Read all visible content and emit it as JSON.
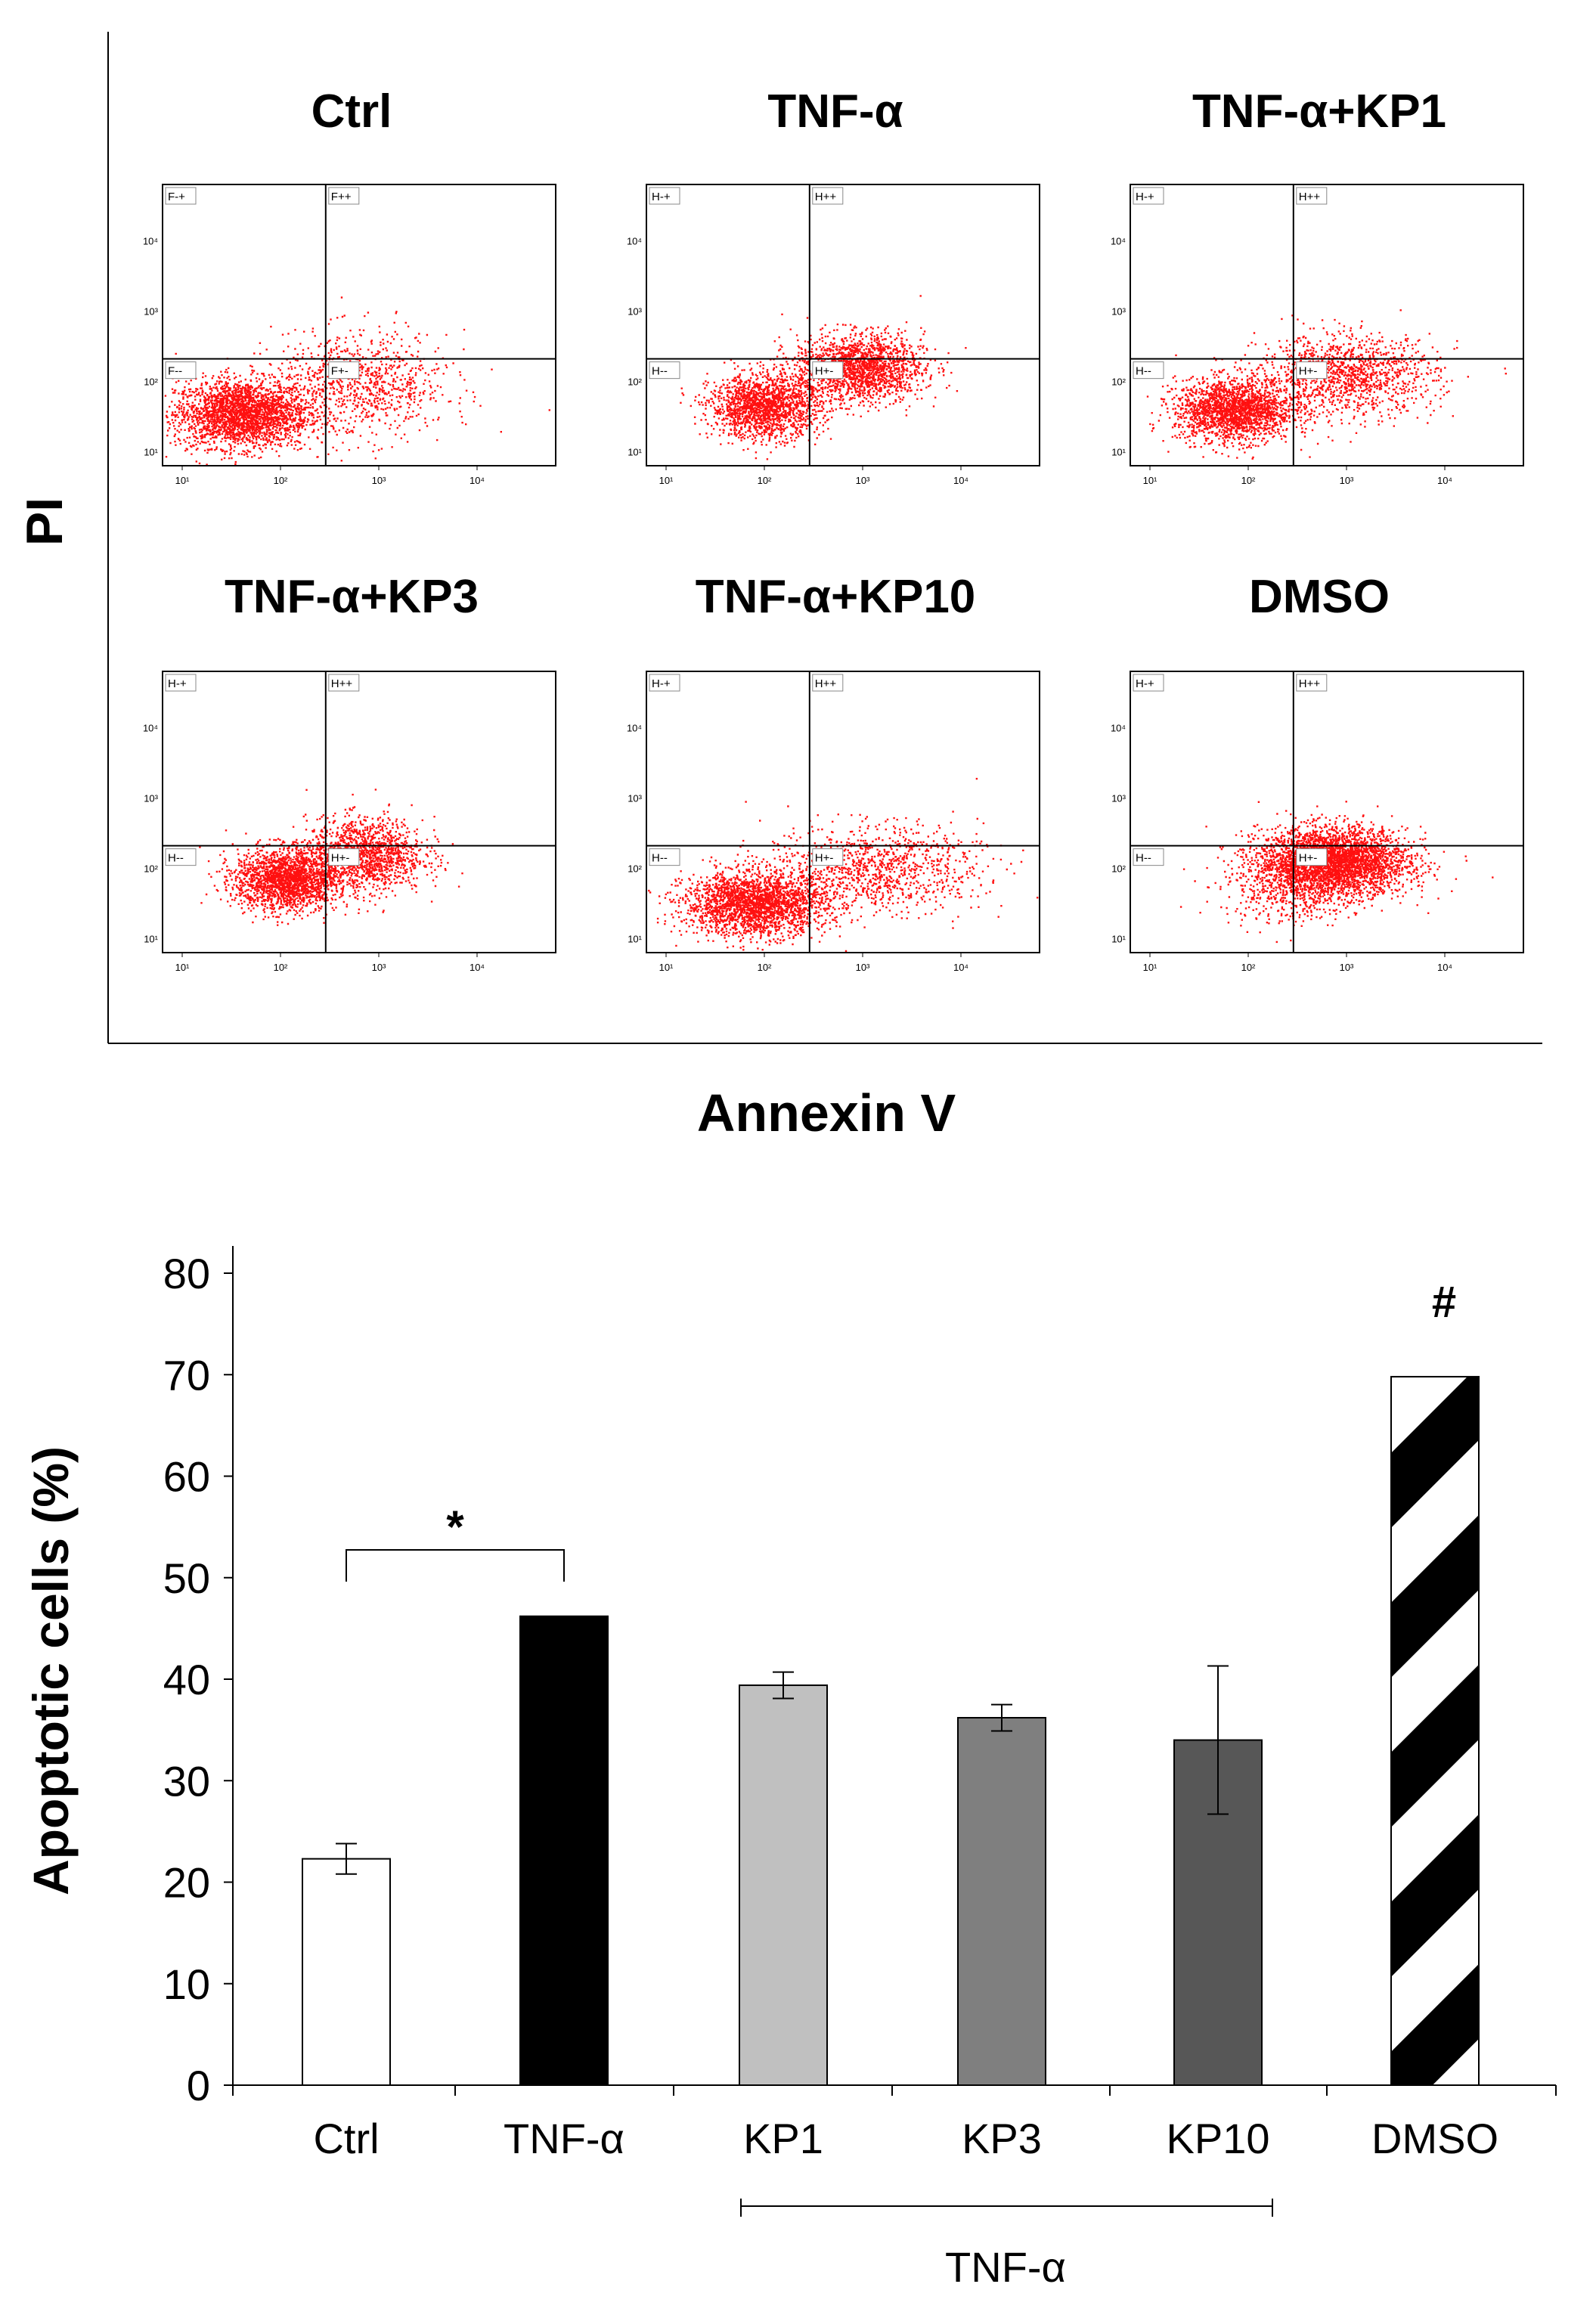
{
  "figure": {
    "y_axis_label": "PI",
    "x_axis_label": "Annexin V",
    "panels": [
      {
        "title": "Ctrl",
        "quadrants": [
          "F-+",
          "F++",
          "F--",
          "F+-"
        ],
        "cluster": {
          "cx": 1.6,
          "cy": 1.55,
          "sx": 0.34,
          "sy": 0.24,
          "n": 2600
        },
        "tail": {
          "cx": 2.8,
          "cy": 1.95,
          "sx": 0.45,
          "sy": 0.38,
          "n": 900
        }
      },
      {
        "title": "TNF-α",
        "quadrants": [
          "H-+",
          "H++",
          "H--",
          "H+-"
        ],
        "cluster": {
          "cx": 2.0,
          "cy": 1.65,
          "sx": 0.28,
          "sy": 0.22,
          "n": 1700
        },
        "tail": {
          "cx": 2.95,
          "cy": 2.2,
          "sx": 0.33,
          "sy": 0.24,
          "n": 1800
        }
      },
      {
        "title": "TNF-α+KP1",
        "quadrants": [
          "H-+",
          "H++",
          "H--",
          "H+-"
        ],
        "cluster": {
          "cx": 1.85,
          "cy": 1.6,
          "sx": 0.3,
          "sy": 0.22,
          "n": 2000
        },
        "tail": {
          "cx": 3.0,
          "cy": 2.1,
          "sx": 0.45,
          "sy": 0.28,
          "n": 1300
        }
      },
      {
        "title": "TNF-α+KP3",
        "quadrants": [
          "H-+",
          "H++",
          "H--",
          "H+-"
        ],
        "cluster": {
          "cx": 2.05,
          "cy": 1.85,
          "sx": 0.26,
          "sy": 0.22,
          "n": 2000
        },
        "tail": {
          "cx": 2.85,
          "cy": 2.2,
          "sx": 0.3,
          "sy": 0.26,
          "n": 1400
        }
      },
      {
        "title": "TNF-α+KP10",
        "quadrants": [
          "H-+",
          "H++",
          "H--",
          "H+-"
        ],
        "cluster": {
          "cx": 1.9,
          "cy": 1.5,
          "sx": 0.36,
          "sy": 0.22,
          "n": 2400
        },
        "tail": {
          "cx": 3.1,
          "cy": 2.0,
          "sx": 0.55,
          "sy": 0.3,
          "n": 1100
        }
      },
      {
        "title": "DMSO",
        "quadrants": [
          "H-+",
          "H++",
          "H--",
          "H+-"
        ],
        "cluster": {
          "cx": 2.85,
          "cy": 2.1,
          "sx": 0.38,
          "sy": 0.24,
          "n": 3600
        },
        "tail": {
          "cx": 2.4,
          "cy": 1.7,
          "sx": 0.35,
          "sy": 0.25,
          "n": 400
        }
      }
    ],
    "tick_labels": {
      "x": [
        "10¹",
        "10²",
        "10³",
        "10⁴"
      ],
      "y": [
        "10⁴",
        "10³",
        "10²",
        "10¹"
      ]
    }
  },
  "chart_data": {
    "type": "bar",
    "ylabel": "Apoptotic cells (%)",
    "ylim": [
      0,
      80
    ],
    "yticks": [
      0,
      10,
      20,
      30,
      40,
      50,
      60,
      70,
      80
    ],
    "categories": [
      "Ctrl",
      "TNF-α",
      "KP1",
      "KP3",
      "KP10",
      "DMSO"
    ],
    "values": [
      22.3,
      46.2,
      39.4,
      36.2,
      34.0,
      69.8
    ],
    "errors": [
      1.5,
      0,
      1.3,
      1.3,
      7.3,
      0
    ],
    "colors": [
      "#ffffff",
      "#000000",
      "#c0c0c0",
      "#7f7f7f",
      "#575757",
      "hatch"
    ],
    "group_label": "TNF-α",
    "group_members": [
      "KP1",
      "KP3",
      "KP10"
    ],
    "annotations": {
      "significance": "*",
      "dmso_mark": "#"
    }
  },
  "colors": {
    "dots": "#ff1010",
    "ink": "#000000"
  }
}
